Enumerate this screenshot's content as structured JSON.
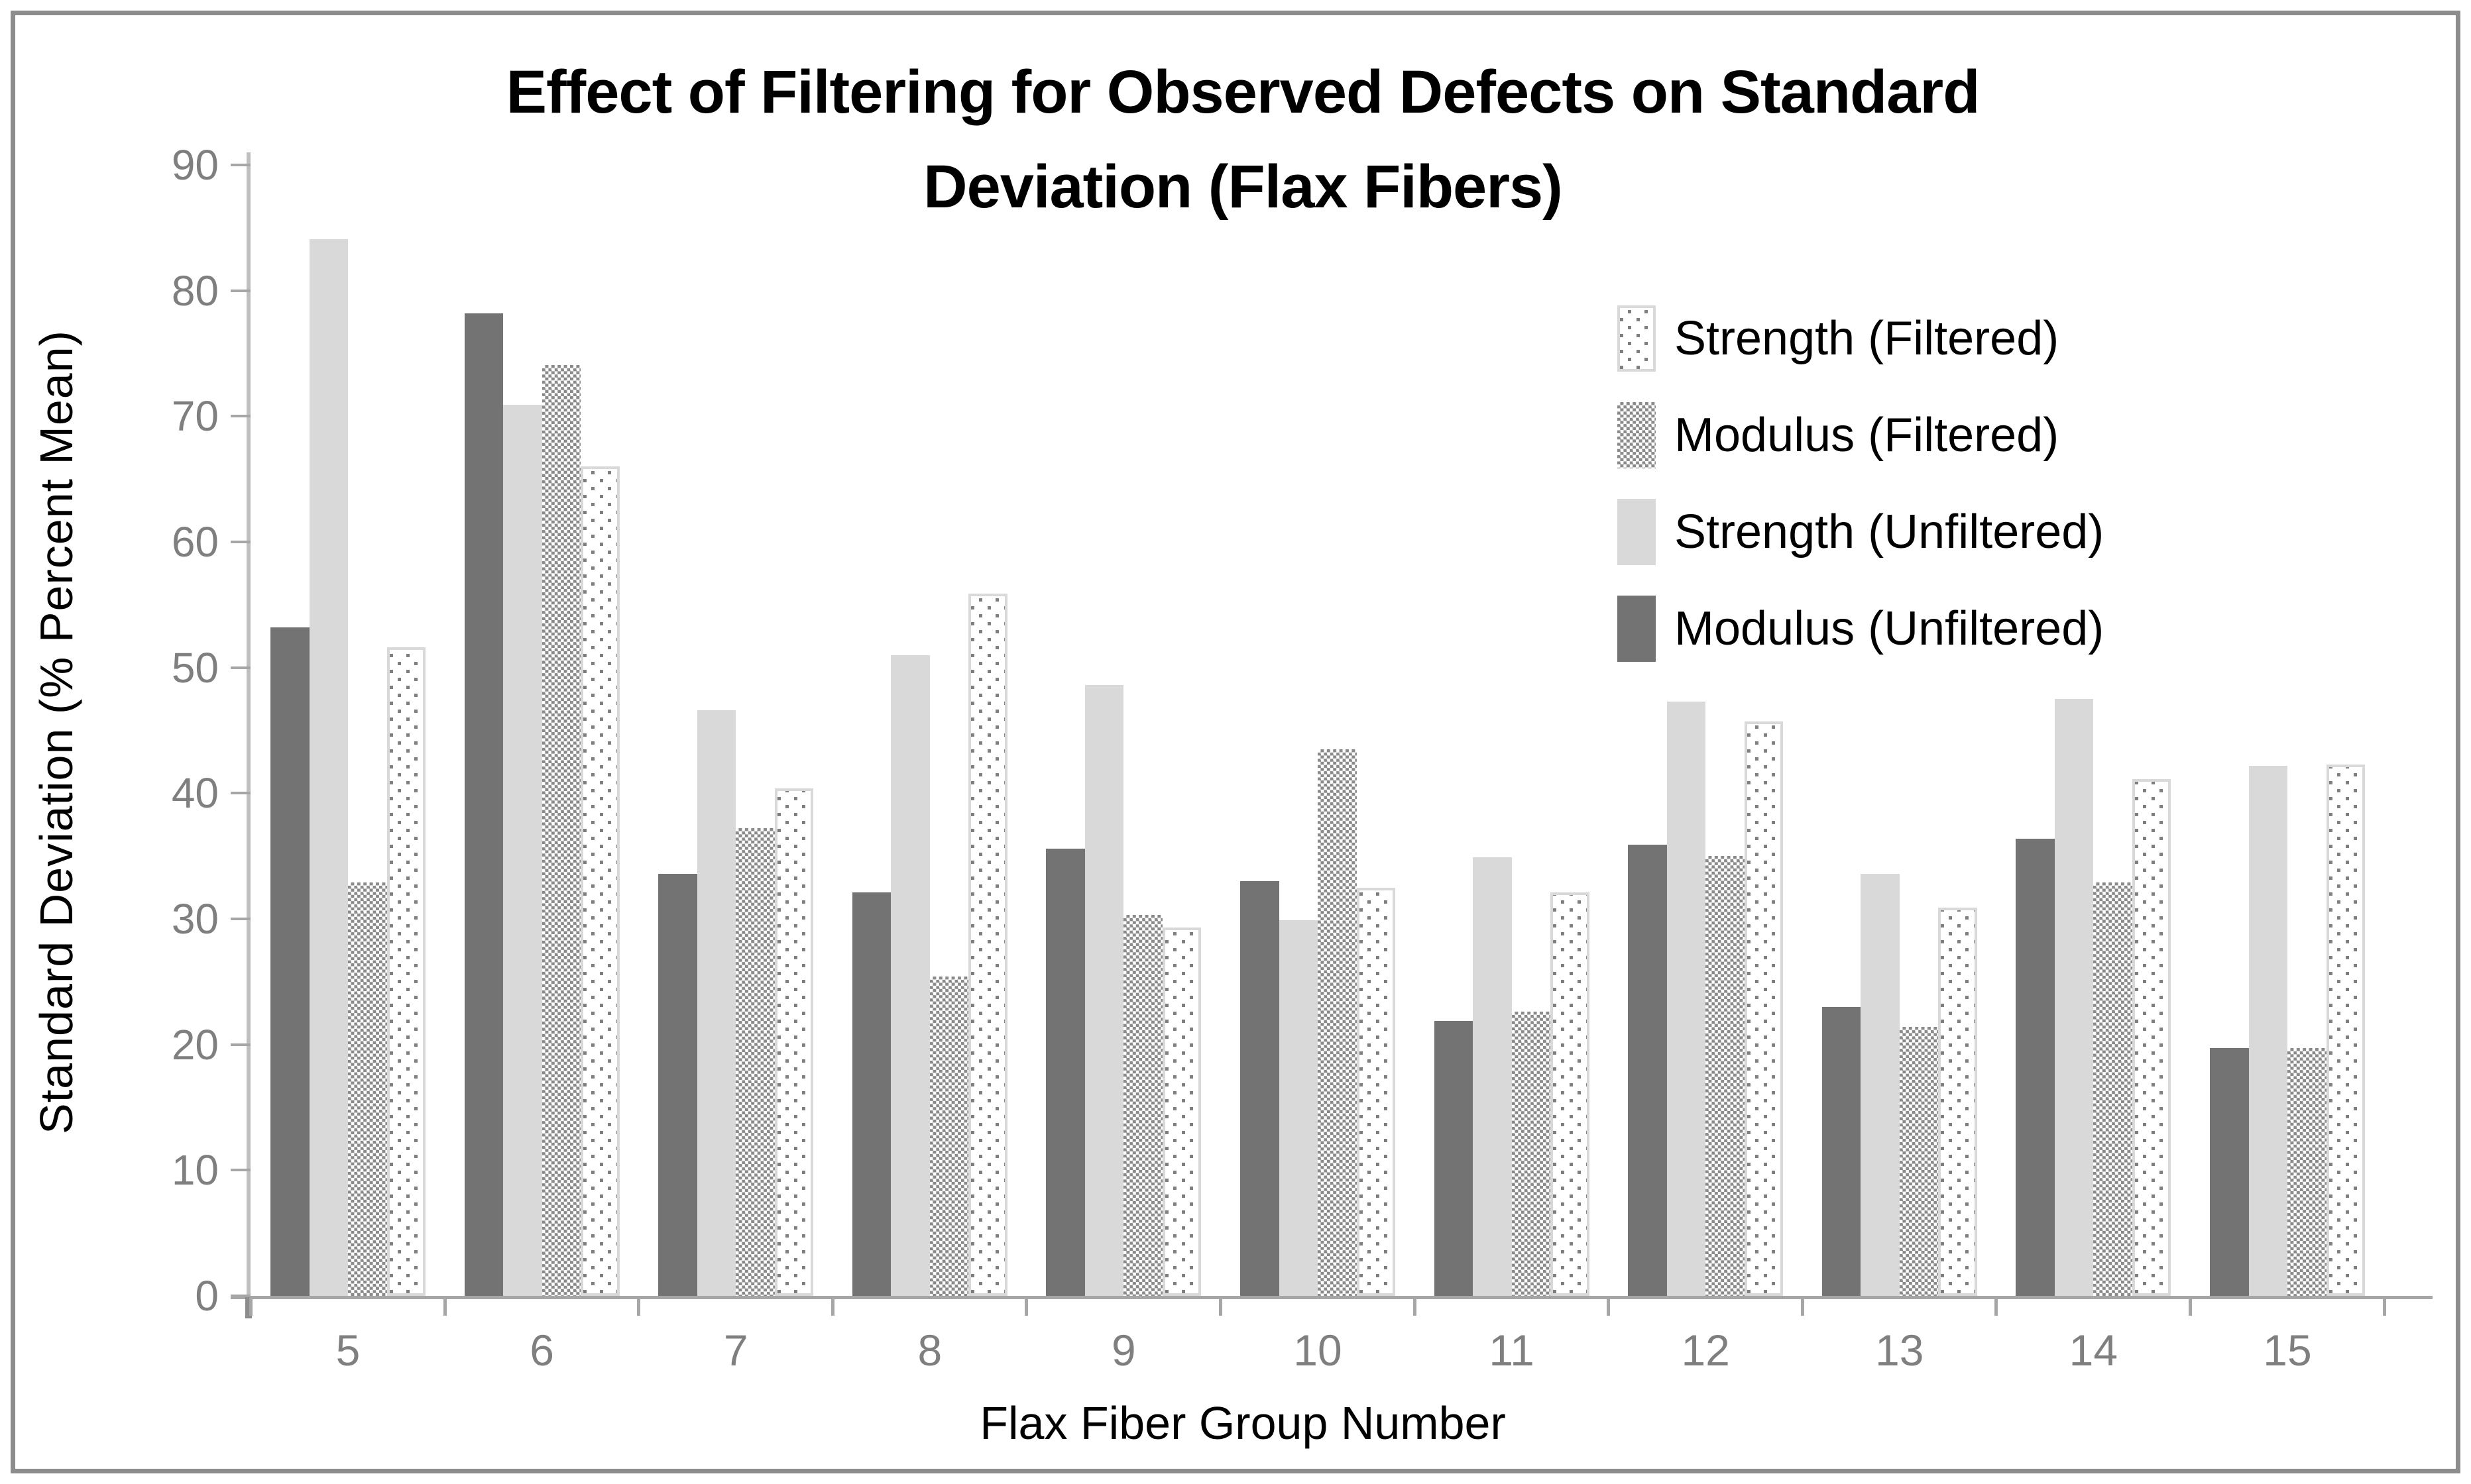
{
  "figure": {
    "background": "#ffffff",
    "border_color": "#8c8c8c"
  },
  "colors": {
    "modulus_unfiltered": "#737373",
    "strength_unfiltered": "#d9d9d9",
    "pattern_gray": "#7f7f7f",
    "checker_gray": "#8a8a8a",
    "axis_line": "#bfbfbf",
    "tick_line": "#a6a6a6",
    "tick_text": "#7f7f7f",
    "title_text": "#000000"
  },
  "chart_data": {
    "type": "bar",
    "title": "Effect of Filtering for Observed Defects on Standard Deviation (Flax Fibers)",
    "title_lines": [
      "Effect of Filtering for Observed Defects on Standard",
      "Deviation (Flax Fibers)"
    ],
    "xlabel": "Flax Fiber Group Number",
    "ylabel": "Standard Deviation (% Percent Mean)",
    "categories": [
      5,
      6,
      7,
      8,
      9,
      10,
      11,
      12,
      13,
      14,
      15
    ],
    "ylim": [
      0,
      90
    ],
    "yticks": [
      0,
      10,
      20,
      30,
      40,
      50,
      60,
      70,
      80,
      90
    ],
    "grid": false,
    "legend_position": "top-right",
    "series": [
      {
        "name": "Strength (Filtered)",
        "pattern": "dotted",
        "values": [
          51.6,
          66.0,
          40.4,
          55.9,
          29.3,
          32.5,
          32.1,
          45.7,
          30.9,
          41.1,
          42.3
        ]
      },
      {
        "name": "Modulus (Filtered)",
        "pattern": "checker",
        "values": [
          32.9,
          74.1,
          37.2,
          25.4,
          30.3,
          43.5,
          22.6,
          35.0,
          21.4,
          32.9,
          19.7
        ]
      },
      {
        "name": "Strength (Unfiltered)",
        "pattern": "solid-light",
        "values": [
          84.1,
          70.9,
          46.6,
          51.0,
          48.6,
          29.9,
          34.9,
          47.3,
          33.6,
          47.5,
          42.2
        ]
      },
      {
        "name": "Modulus (Unfiltered)",
        "pattern": "solid-dark",
        "values": [
          53.2,
          78.2,
          33.6,
          32.1,
          35.6,
          33.0,
          21.9,
          35.9,
          23.0,
          36.4,
          19.7
        ]
      }
    ],
    "bar_draw_order": [
      "Modulus (Unfiltered)",
      "Strength (Unfiltered)",
      "Modulus (Filtered)",
      "Strength (Filtered)"
    ]
  }
}
